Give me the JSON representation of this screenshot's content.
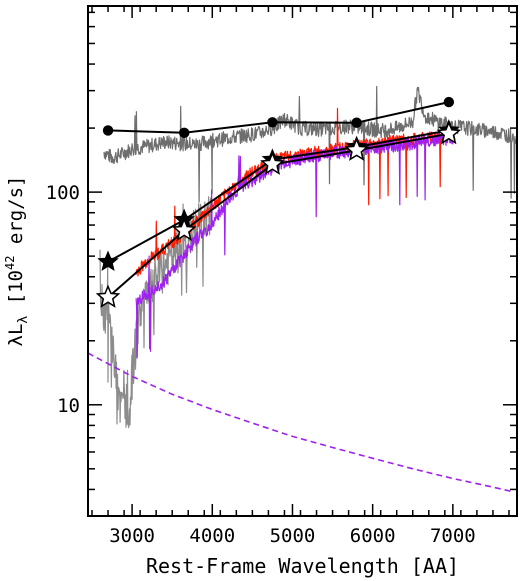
{
  "chart_data": {
    "type": "line",
    "xlabel": "Rest-Frame Wavelength [AA]",
    "ylabel_main": "λL",
    "ylabel_sub": "λ",
    "ylabel_unit_prefix": " [10",
    "ylabel_unit_exp": "42",
    "ylabel_unit_suffix": " erg/s]",
    "xlim": [
      2450,
      7800
    ],
    "ylim": [
      3,
      750
    ],
    "yscale": "log",
    "x_ticks": [
      3000,
      4000,
      5000,
      6000,
      7000
    ],
    "x_tick_labels": [
      "3000",
      "4000",
      "5000",
      "6000",
      "7000"
    ],
    "y_ticks": [
      10,
      100
    ],
    "y_tick_labels": [
      "10",
      "100"
    ],
    "colors": {
      "spectrum_gray": "#6e6e6e",
      "spectrum_light": "#8c8c8c",
      "red": "#ff1a00",
      "purple": "#a020f0",
      "line": "#000000",
      "dashed": "#a020f0"
    },
    "series": [
      {
        "marker": "circle",
        "x": [
          2700,
          3650,
          4750,
          5800,
          6950
        ],
        "y": [
          195,
          190,
          213,
          212,
          265
        ]
      },
      {
        "marker": "filled-star",
        "x": [
          2700,
          3650,
          4750,
          5800,
          6950
        ],
        "y": [
          47,
          74,
          142,
          163,
          195
        ]
      },
      {
        "marker": "open-star",
        "x": [
          2700,
          3650,
          4750,
          5800,
          6950
        ],
        "y": [
          32,
          66,
          135,
          157,
          188
        ]
      },
      {
        "style": "dashed",
        "x": [
          2450,
          3000,
          3500,
          4000,
          4500,
          5000,
          5500,
          6000,
          6500,
          7000,
          7500,
          7750
        ],
        "y": [
          17.5,
          13.6,
          11.2,
          9.5,
          8.2,
          7.1,
          6.3,
          5.6,
          5.0,
          4.5,
          4.1,
          3.9
        ]
      }
    ],
    "spectra": [
      {
        "color": "gray",
        "x": [
          2650,
          2750,
          2850,
          3000,
          3200,
          3400,
          3600,
          3800,
          4000,
          4200,
          4400,
          4600,
          4800,
          4900,
          5100,
          5300,
          5500,
          5700,
          5900,
          6100,
          6300,
          6500,
          6560,
          6650,
          6800,
          7000,
          7200,
          7400,
          7600,
          7800
        ],
        "y": [
          155,
          145,
          150,
          160,
          165,
          172,
          170,
          168,
          175,
          180,
          185,
          190,
          205,
          220,
          200,
          198,
          200,
          205,
          200,
          195,
          200,
          215,
          300,
          230,
          215,
          205,
          200,
          195,
          190,
          180
        ]
      },
      {
        "color": "gray-uv",
        "x": [
          2600,
          2700,
          2800,
          2850,
          2900,
          2950,
          3000,
          3050,
          3100,
          3200,
          3300,
          3400,
          3500,
          3600,
          3700,
          3800,
          3900,
          4000
        ],
        "y": [
          33,
          26,
          14,
          9,
          12,
          7,
          14,
          20,
          28,
          36,
          40,
          45,
          50,
          55,
          60,
          70,
          75,
          80
        ]
      },
      {
        "color": "red",
        "x": [
          3050,
          3200,
          3400,
          3600,
          3800,
          4000,
          4200,
          4400,
          4600,
          4800,
          5000,
          5200,
          5400,
          5600,
          5800,
          6000,
          6200,
          6400,
          6600,
          6800,
          7000
        ],
        "y": [
          42,
          48,
          54,
          62,
          72,
          85,
          100,
          118,
          130,
          142,
          148,
          152,
          156,
          160,
          164,
          168,
          172,
          176,
          178,
          182,
          185
        ]
      },
      {
        "color": "purple",
        "x": [
          3050,
          3200,
          3400,
          3600,
          3800,
          4000,
          4200,
          4400,
          4600,
          4800,
          5000,
          5200,
          5400,
          5600,
          5800,
          6000,
          6200,
          6400,
          6600,
          6800,
          7000
        ],
        "y": [
          30,
          34,
          38,
          48,
          60,
          70,
          92,
          108,
          120,
          133,
          141,
          146,
          150,
          154,
          158,
          162,
          165,
          168,
          172,
          176,
          180
        ]
      }
    ]
  }
}
